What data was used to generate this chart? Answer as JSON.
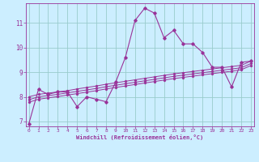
{
  "xlabel": "Windchill (Refroidissement éolien,°C)",
  "background_color": "#cceeff",
  "line_color": "#993399",
  "grid_color": "#99cccc",
  "x_data": [
    0,
    1,
    2,
    3,
    4,
    5,
    6,
    7,
    8,
    9,
    10,
    11,
    12,
    13,
    14,
    15,
    16,
    17,
    18,
    19,
    20,
    21,
    22,
    23
  ],
  "y_wavy": [
    6.9,
    8.3,
    8.1,
    8.2,
    8.2,
    7.6,
    8.0,
    7.9,
    7.8,
    8.6,
    9.6,
    11.1,
    11.6,
    11.4,
    10.4,
    10.7,
    10.15,
    10.15,
    9.8,
    9.2,
    9.2,
    8.4,
    9.4,
    9.45
  ],
  "y_line1": [
    8.0,
    8.1,
    8.15,
    8.2,
    8.25,
    8.32,
    8.38,
    8.44,
    8.51,
    8.57,
    8.63,
    8.69,
    8.75,
    8.81,
    8.87,
    8.93,
    8.98,
    9.03,
    9.08,
    9.13,
    9.18,
    9.23,
    9.28,
    9.45
  ],
  "y_line2": [
    7.88,
    8.0,
    8.05,
    8.1,
    8.16,
    8.22,
    8.28,
    8.34,
    8.41,
    8.47,
    8.53,
    8.59,
    8.65,
    8.71,
    8.77,
    8.83,
    8.88,
    8.93,
    8.98,
    9.03,
    9.08,
    9.13,
    9.18,
    9.35
  ],
  "y_line3": [
    7.78,
    7.9,
    7.96,
    8.01,
    8.07,
    8.13,
    8.19,
    8.25,
    8.32,
    8.38,
    8.44,
    8.5,
    8.56,
    8.62,
    8.68,
    8.74,
    8.79,
    8.84,
    8.89,
    8.94,
    8.99,
    9.04,
    9.1,
    9.27
  ],
  "ylim": [
    6.8,
    11.8
  ],
  "yticks": [
    7,
    8,
    9,
    10,
    11
  ],
  "xticks": [
    0,
    1,
    2,
    3,
    4,
    5,
    6,
    7,
    8,
    9,
    10,
    11,
    12,
    13,
    14,
    15,
    16,
    17,
    18,
    19,
    20,
    21,
    22,
    23
  ],
  "xlim": [
    -0.3,
    23.3
  ]
}
